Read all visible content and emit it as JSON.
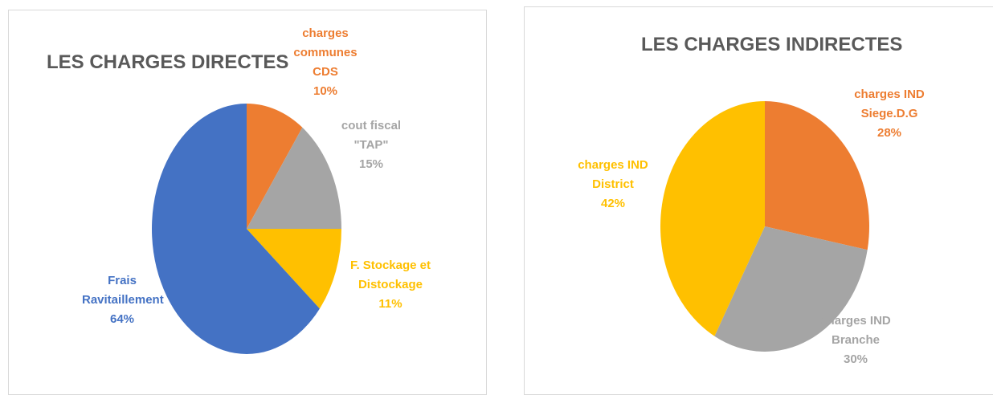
{
  "chart_data": [
    {
      "type": "pie",
      "title": "LES CHARGES DIRECTES",
      "categories": [
        "charges communes CDS",
        "cout fiscal \"TAP\"",
        "F. Stockage et Distockage",
        "Frais Ravitaillement"
      ],
      "values": [
        10,
        15,
        11,
        64
      ],
      "value_labels": [
        "10%",
        "15%",
        "11%",
        "64%"
      ],
      "colors": [
        "#ed7d31",
        "#a5a5a5",
        "#ffc000",
        "#4472c4"
      ]
    },
    {
      "type": "pie",
      "title": "LES CHARGES INDIRECTES",
      "categories": [
        "charges IND Siege.D.G",
        "charges IND Branche",
        "charges IND District"
      ],
      "values": [
        28,
        30,
        42
      ],
      "value_labels": [
        "28%",
        "30%",
        "42%"
      ],
      "colors": [
        "#ed7d31",
        "#a5a5a5",
        "#ffc000"
      ]
    }
  ]
}
